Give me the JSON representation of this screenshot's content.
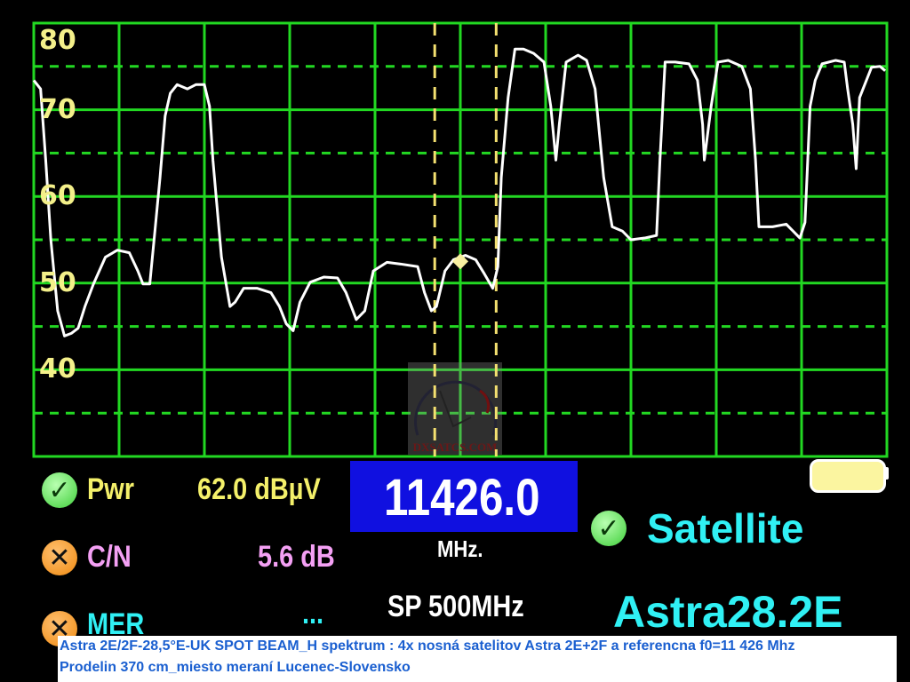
{
  "chart_data": {
    "type": "line",
    "title": "",
    "xlabel": "",
    "ylabel": "",
    "xunit": "MHz",
    "yunit": "dBµV",
    "xlim": [
      11176,
      11676
    ],
    "ylim": [
      30,
      80
    ],
    "y_ticks": [
      40,
      50,
      60,
      70,
      80
    ],
    "grid": true,
    "colors": {
      "grid": "#22d822",
      "trace": "#ffffff",
      "markers": "#f4e070",
      "ticks": "#f4f08a"
    },
    "marker_lines_x": [
      11411,
      11447
    ],
    "marker_point": {
      "x": 11426,
      "y": 52.5
    },
    "series": [
      {
        "x": [
          11176,
          11180,
          11183,
          11186,
          11190,
          11194,
          11198,
          11202,
          11206,
          11211,
          11218,
          11225,
          11232,
          11237,
          11240,
          11244,
          11247,
          11250,
          11253,
          11256,
          11260,
          11266,
          11271,
          11276,
          11279,
          11281,
          11286,
          11291,
          11294,
          11299,
          11307,
          11315,
          11320,
          11324,
          11328,
          11332,
          11338,
          11346,
          11354,
          11359,
          11365,
          11370,
          11375,
          11383,
          11391,
          11401,
          11405,
          11409,
          11412,
          11417,
          11422,
          11429,
          11435,
          11440,
          11445,
          11448,
          11450,
          11454,
          11458,
          11463,
          11469,
          11475,
          11479,
          11482,
          11484,
          11488,
          11495,
          11500,
          11505,
          11510,
          11515,
          11521,
          11526,
          11534,
          11541,
          11543,
          11546,
          11552,
          11560,
          11565,
          11568,
          11569,
          11573,
          11577,
          11583,
          11591,
          11596,
          11599,
          11601,
          11609,
          11617,
          11625,
          11628,
          11631,
          11634,
          11638,
          11646,
          11651,
          11653,
          11656,
          11658,
          11660,
          11664,
          11667,
          11672,
          11675
        ],
        "y": [
          73.4,
          72.4,
          64.2,
          55.0,
          46.8,
          43.9,
          44.2,
          44.8,
          47.3,
          49.9,
          53.0,
          53.8,
          53.5,
          51.4,
          49.9,
          49.9,
          56.0,
          62.2,
          69.3,
          71.9,
          72.9,
          72.4,
          72.9,
          72.9,
          70.4,
          64.2,
          53.0,
          47.3,
          47.8,
          49.4,
          49.4,
          48.9,
          47.3,
          45.3,
          44.5,
          47.8,
          50.1,
          50.7,
          50.6,
          48.9,
          45.8,
          46.8,
          51.4,
          52.4,
          52.2,
          51.9,
          48.9,
          46.8,
          47.3,
          51.4,
          52.7,
          53.2,
          52.7,
          51.1,
          49.4,
          51.9,
          62.2,
          71.4,
          77.0,
          77.0,
          76.5,
          75.5,
          70.4,
          64.2,
          68.3,
          75.5,
          76.3,
          75.7,
          72.4,
          62.2,
          56.5,
          56.0,
          55.0,
          55.2,
          55.5,
          64.2,
          75.5,
          75.5,
          75.3,
          73.4,
          68.3,
          64.2,
          70.4,
          75.5,
          75.7,
          75.0,
          72.4,
          64.2,
          56.5,
          56.5,
          56.8,
          55.2,
          57.0,
          70.4,
          73.4,
          75.3,
          75.7,
          75.5,
          72.4,
          68.3,
          63.2,
          71.4,
          73.4,
          74.9,
          75.0,
          74.5
        ]
      }
    ]
  },
  "readouts": {
    "pwr_label": "Pwr",
    "pwr_value": "62.0 dBµV",
    "cn_label": "C/N",
    "cn_value": "5.6 dB",
    "mer_label": "MER",
    "mer_value": "...",
    "frequency": "11426.0",
    "frequency_unit": "MHz.",
    "span": "SP 500MHz",
    "status": "Satellite",
    "satellite": "Astra28.2E"
  },
  "icons": {
    "pwr": "check-icon",
    "cn": "cross-icon",
    "mer": "cross-icon",
    "status": "check-icon",
    "battery": "battery-icon"
  },
  "watermark": "DXSATCS.COM",
  "caption": {
    "line1": "Astra 2E/2F-28,5°E-UK SPOT BEAM_H spektrum : 4x nosná satelitov Astra 2E+2F a referencna f0=11 426 Mhz",
    "line2": "Prodelin 370 cm_miesto meraní Lucenec-Slovensko"
  }
}
